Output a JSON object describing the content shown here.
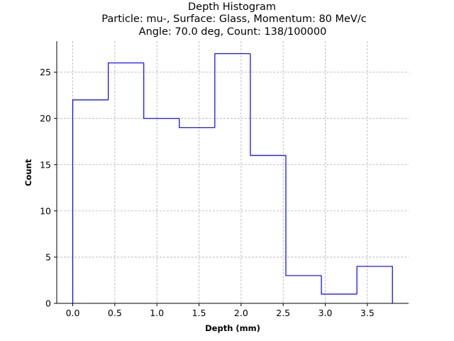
{
  "chart_data": {
    "type": "histogram",
    "title_lines": [
      "Depth Histogram",
      "Particle: mu-, Surface: Glass, Momentum: 80 MeV/c",
      "Angle: 70.0 deg, Count: 138/100000"
    ],
    "xlabel": "Depth (mm)",
    "ylabel": "Count",
    "xlim": [
      -0.19,
      3.99
    ],
    "ylim": [
      0,
      28.35
    ],
    "xticks": [
      0.0,
      0.5,
      1.0,
      1.5,
      2.0,
      2.5,
      3.0,
      3.5
    ],
    "xtick_labels": [
      "0.0",
      "0.5",
      "1.0",
      "1.5",
      "2.0",
      "2.5",
      "3.0",
      "3.5"
    ],
    "yticks": [
      0,
      5,
      10,
      15,
      20,
      25
    ],
    "ytick_labels": [
      "0",
      "5",
      "10",
      "15",
      "20",
      "25"
    ],
    "bin_edges": [
      0.0,
      0.422,
      0.844,
      1.266,
      1.688,
      2.11,
      2.532,
      2.954,
      3.376,
      3.798
    ],
    "counts": [
      22,
      26,
      20,
      19,
      27,
      16,
      3,
      1,
      4
    ],
    "grid": true,
    "line_color": "#0000ff"
  }
}
